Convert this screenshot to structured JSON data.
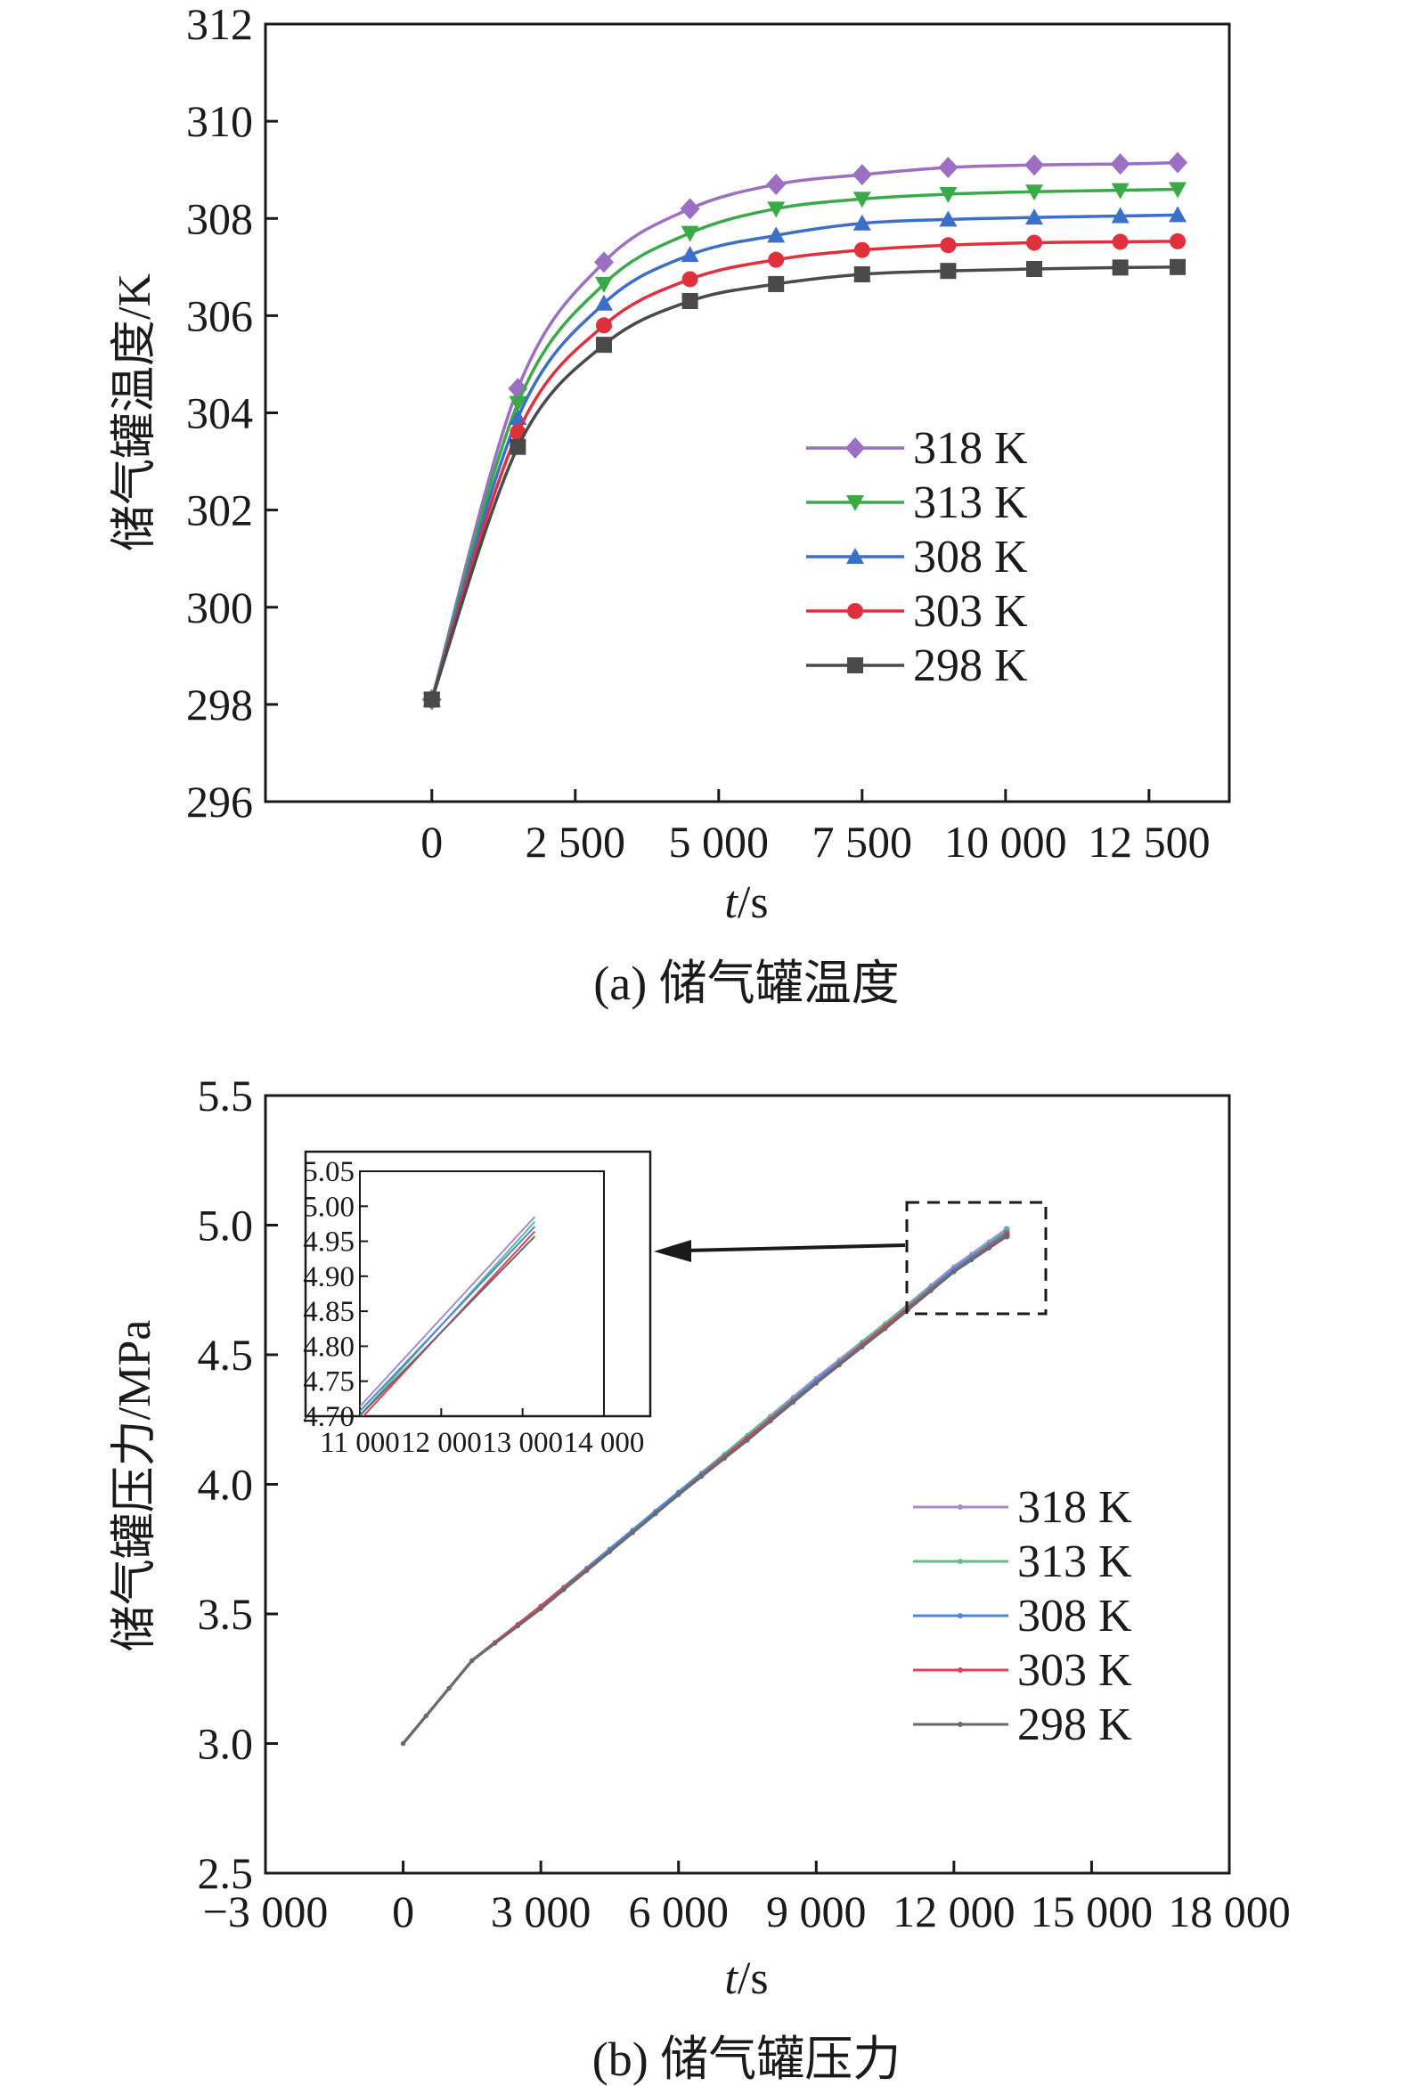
{
  "chart_data": [
    {
      "type": "line",
      "caption": "(a) 储气罐温度",
      "ylabel": "储气罐温度/K",
      "xlabel_italic": "t",
      "xlabel_unit": "/s",
      "xlim": [
        -2900,
        13900
      ],
      "ylim": [
        296,
        312
      ],
      "x_ticks": [
        0,
        2500,
        5000,
        7500,
        10000,
        12500
      ],
      "x_tick_labels": [
        "0",
        "2 500",
        "5 000",
        "7 500",
        "10 000",
        "12 500"
      ],
      "y_ticks": [
        296,
        298,
        300,
        302,
        304,
        306,
        308,
        310,
        312
      ],
      "y_tick_labels": [
        "296",
        "298",
        "300",
        "302",
        "304",
        "306",
        "308",
        "310",
        "312"
      ],
      "x": [
        0,
        1500,
        3000,
        4500,
        6000,
        7500,
        9000,
        10500,
        12000,
        13000
      ],
      "legend_position": "right-center",
      "series": [
        {
          "name": "318 K",
          "color": "#9b6fc4",
          "marker": "diamond",
          "values": [
            298.1,
            304.5,
            307.1,
            308.2,
            308.7,
            308.9,
            309.05,
            309.1,
            309.12,
            309.15
          ]
        },
        {
          "name": "313 K",
          "color": "#3aaa48",
          "marker": "triangle-down",
          "values": [
            298.1,
            304.2,
            306.65,
            307.7,
            308.2,
            308.4,
            308.5,
            308.55,
            308.58,
            308.6
          ]
        },
        {
          "name": "308 K",
          "color": "#3b6fc8",
          "marker": "triangle-up",
          "values": [
            298.1,
            303.9,
            306.25,
            307.25,
            307.65,
            307.9,
            307.98,
            308.02,
            308.05,
            308.07
          ]
        },
        {
          "name": "303 K",
          "color": "#e0303e",
          "marker": "circle",
          "values": [
            298.1,
            303.6,
            305.8,
            306.75,
            307.15,
            307.35,
            307.45,
            307.5,
            307.52,
            307.53
          ]
        },
        {
          "name": "298 K",
          "color": "#4a4a4a",
          "marker": "square",
          "values": [
            298.1,
            303.3,
            305.4,
            306.3,
            306.65,
            306.85,
            306.92,
            306.96,
            306.99,
            307.0
          ]
        }
      ]
    },
    {
      "type": "line",
      "caption": "(b) 储气罐压力",
      "ylabel": "储气罐压力/MPa",
      "xlabel_italic": "t",
      "xlabel_unit": "/s",
      "xlim": [
        -3000,
        18000
      ],
      "ylim": [
        2.5,
        5.5
      ],
      "x_ticks": [
        -3000,
        0,
        3000,
        6000,
        9000,
        12000,
        15000,
        18000
      ],
      "x_tick_labels": [
        "−3 000",
        "0",
        "3 000",
        "6 000",
        "9 000",
        "12 000",
        "15 000",
        "18 000"
      ],
      "y_ticks": [
        2.5,
        3.0,
        3.5,
        4.0,
        4.5,
        5.0,
        5.5
      ],
      "y_tick_labels": [
        "2.5",
        "3.0",
        "3.5",
        "4.0",
        "4.5",
        "5.0",
        "5.5"
      ],
      "x": [
        0,
        1500,
        3000,
        4500,
        6000,
        7500,
        9000,
        10500,
        12000,
        13150
      ],
      "legend_position": "right-center",
      "series": [
        {
          "name": "318 K",
          "color": "#a78ad0",
          "values": [
            3.0,
            3.32,
            3.53,
            3.75,
            3.97,
            4.19,
            4.41,
            4.62,
            4.84,
            4.985
          ]
        },
        {
          "name": "313 K",
          "color": "#5bbf86",
          "values": [
            3.0,
            3.32,
            3.53,
            3.75,
            3.97,
            4.19,
            4.4,
            4.62,
            4.83,
            4.978
          ]
        },
        {
          "name": "308 K",
          "color": "#4a88d8",
          "values": [
            3.0,
            3.32,
            3.53,
            3.75,
            3.97,
            4.18,
            4.4,
            4.61,
            4.83,
            4.971
          ]
        },
        {
          "name": "303 K",
          "color": "#e0405a",
          "values": [
            3.0,
            3.32,
            3.53,
            3.74,
            3.96,
            4.18,
            4.39,
            4.61,
            4.82,
            4.964
          ]
        },
        {
          "name": "298 K",
          "color": "#6a6a6a",
          "values": [
            3.0,
            3.32,
            3.52,
            3.74,
            3.96,
            4.17,
            4.39,
            4.6,
            4.82,
            4.957
          ]
        }
      ],
      "inset": {
        "xlim": [
          11000,
          14000
        ],
        "ylim": [
          4.7,
          5.05
        ],
        "x_tick_labels": [
          "11 000",
          "12 000",
          "13 000",
          "14 000"
        ],
        "x_ticks": [
          11000,
          12000,
          13000,
          14000
        ],
        "y_ticks": [
          4.7,
          4.75,
          4.8,
          4.85,
          4.9,
          4.95,
          5.0,
          5.05
        ],
        "y_tick_labels": [
          "4.70",
          "4.75",
          "4.80",
          "4.85",
          "4.90",
          "4.95",
          "5.00",
          "5.05"
        ]
      }
    }
  ]
}
